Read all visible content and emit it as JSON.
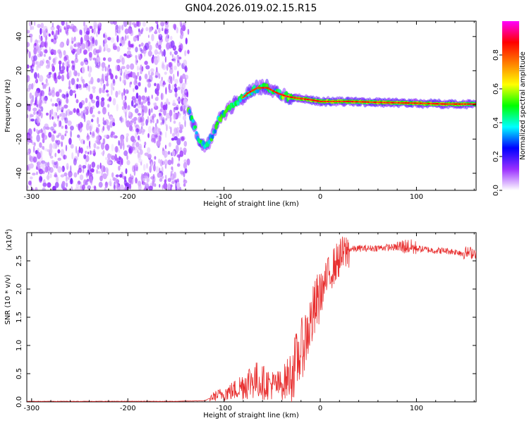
{
  "title": "GN04.2026.019.02.15.R15",
  "chart_data": [
    {
      "type": "heatmap",
      "name": "spectrogram",
      "xlabel": "Height of straight line (km)",
      "ylabel": "Frequency (Hz)",
      "xlim": [
        -305,
        162
      ],
      "ylim": [
        -50,
        49
      ],
      "x_ticks": [
        -300,
        -200,
        -100,
        0,
        100
      ],
      "y_ticks": [
        -40,
        -20,
        0,
        20,
        40
      ],
      "noise_region_x": [
        -305,
        -137
      ],
      "ridge": [
        {
          "x": -137,
          "y": -3
        },
        {
          "x": -130,
          "y": -14
        },
        {
          "x": -125,
          "y": -22
        },
        {
          "x": -118,
          "y": -24
        },
        {
          "x": -112,
          "y": -18
        },
        {
          "x": -105,
          "y": -8
        },
        {
          "x": -95,
          "y": -2
        },
        {
          "x": -85,
          "y": 2
        },
        {
          "x": -75,
          "y": 7
        },
        {
          "x": -65,
          "y": 10
        },
        {
          "x": -55,
          "y": 10
        },
        {
          "x": -45,
          "y": 7
        },
        {
          "x": -35,
          "y": 5
        },
        {
          "x": -25,
          "y": 4
        },
        {
          "x": -10,
          "y": 3
        },
        {
          "x": 0,
          "y": 2
        },
        {
          "x": 30,
          "y": 2
        },
        {
          "x": 60,
          "y": 1.5
        },
        {
          "x": 100,
          "y": 1
        },
        {
          "x": 130,
          "y": 0.5
        },
        {
          "x": 162,
          "y": 0.5
        }
      ],
      "colorbar": {
        "label": "Normalized spectral amplitude",
        "range": [
          0,
          1
        ],
        "ticks": [
          "0.0",
          "0.2",
          "0.4",
          "0.6",
          "0.8"
        ],
        "stops": [
          "#ffffff",
          "#9b30ff",
          "#0000ff",
          "#00ffff",
          "#00ff00",
          "#ffff00",
          "#ff8000",
          "#ff0000",
          "#ff00ff"
        ]
      }
    },
    {
      "type": "line",
      "name": "snr",
      "xlabel": "Height of straight line (km)",
      "ylabel": "SNR (10 * v/v)",
      "scale_label": "(x10",
      "scale_exponent": "4",
      "xlim": [
        -305,
        162
      ],
      "ylim": [
        0,
        3.0
      ],
      "x_ticks": [
        -300,
        -200,
        -100,
        0,
        100
      ],
      "y_ticks": [
        "0.0",
        "0.5",
        "1.0",
        "1.5",
        "2.0",
        "2.5"
      ],
      "color": "#e83030",
      "x": [
        -305,
        -250,
        -200,
        -150,
        -120,
        -110,
        -100,
        -90,
        -80,
        -70,
        -60,
        -50,
        -40,
        -30,
        -20,
        -10,
        0,
        10,
        20,
        30,
        40,
        50,
        60,
        70,
        80,
        90,
        100,
        110,
        120,
        130,
        140,
        150,
        162
      ],
      "y": [
        0.01,
        0.01,
        0.01,
        0.01,
        0.02,
        0.1,
        0.15,
        0.2,
        0.3,
        0.4,
        0.35,
        0.3,
        0.3,
        0.5,
        0.9,
        1.4,
        1.9,
        2.3,
        2.55,
        2.7,
        2.72,
        2.72,
        2.73,
        2.74,
        2.74,
        2.76,
        2.72,
        2.7,
        2.68,
        2.68,
        2.66,
        2.64,
        2.65
      ]
    }
  ]
}
